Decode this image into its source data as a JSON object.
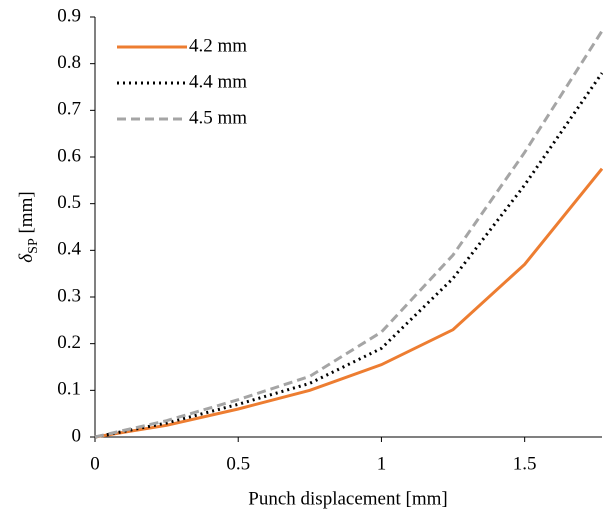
{
  "chart_data": {
    "type": "line",
    "x_label": "Punch displacement [mm]",
    "y_label": [
      "δ",
      "SP",
      " [mm]"
    ],
    "x": [
      0,
      0.25,
      0.5,
      0.75,
      1.0,
      1.25,
      1.5,
      1.77
    ],
    "series": [
      {
        "name": "4.2 mm",
        "color": "#ed7d31",
        "dash": "solid",
        "values": [
          0,
          0.025,
          0.06,
          0.1,
          0.155,
          0.23,
          0.37,
          0.575
        ]
      },
      {
        "name": "4.4 mm",
        "color": "#000000",
        "dash": "dotted",
        "values": [
          0,
          0.03,
          0.07,
          0.115,
          0.19,
          0.34,
          0.54,
          0.78
        ]
      },
      {
        "name": "4.5 mm",
        "color": "#a5a5a5",
        "dash": "dashed",
        "values": [
          0,
          0.035,
          0.08,
          0.13,
          0.225,
          0.39,
          0.61,
          0.87
        ]
      }
    ],
    "xlim": [
      0,
      1.77
    ],
    "xticks": [
      0,
      0.5,
      1,
      1.5
    ],
    "ylim": [
      0,
      0.9
    ],
    "yticks": [
      0,
      0.1,
      0.2,
      0.3,
      0.4,
      0.5,
      0.6,
      0.7,
      0.8,
      0.9
    ],
    "grid": false,
    "legend": "top-left"
  }
}
